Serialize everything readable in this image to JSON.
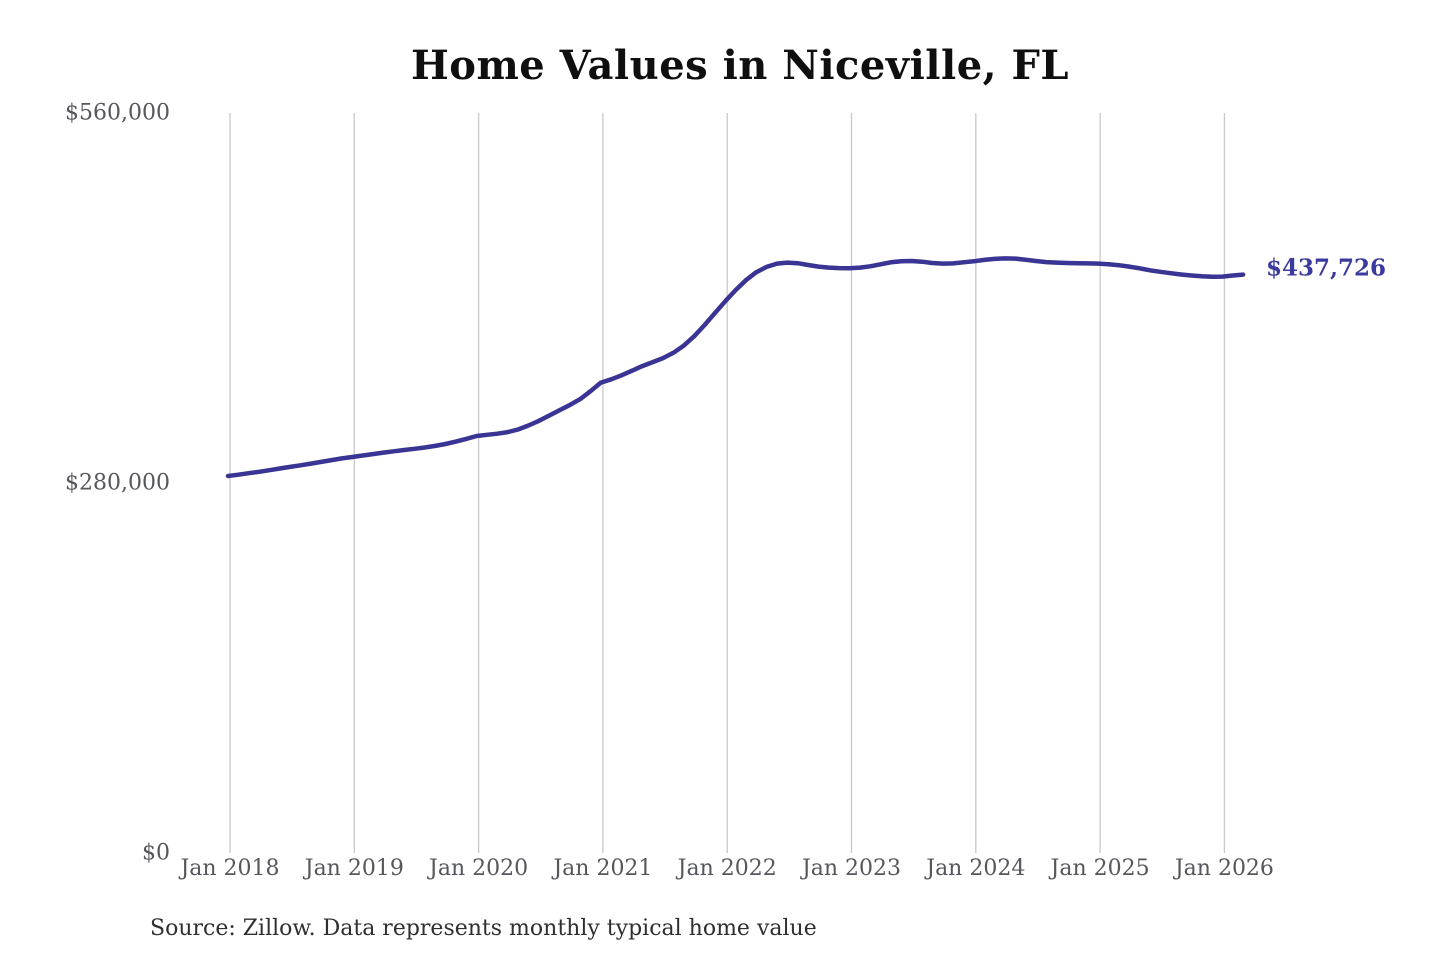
{
  "title": "Home Values in Niceville, FL",
  "latest_value_label": "$437,726",
  "source_note": "Source: Zillow. Data represents monthly typical home value",
  "colors": {
    "line": "#3a3494",
    "latest_label": "#3b3a9e",
    "gridline": "#c9c9cd",
    "title": "#0f0f0f",
    "axis_label": "#55575c",
    "source": "#2f2f2f"
  },
  "chart_data": {
    "type": "line",
    "title": "Home Values in Niceville, FL",
    "xlabel": "",
    "ylabel": "",
    "ylim": [
      0,
      560000
    ],
    "grid": "vertical-only",
    "legend": "none",
    "y_ticks": {
      "values": [
        0,
        280000,
        560000
      ],
      "labels": [
        "$0",
        "$280,000",
        "$560,000"
      ]
    },
    "x_ticks": [
      "Jan 2018",
      "Jan 2019",
      "Jan 2020",
      "Jan 2021",
      "Jan 2022",
      "Jan 2023",
      "Jan 2024",
      "Jan 2025",
      "Jan 2026"
    ],
    "frequency": "monthly",
    "x_start": "Jan 2018",
    "x_end": "Mar 2026",
    "latest_value": 437726,
    "annotations": [
      {
        "text": "$437,726",
        "position": "end-of-line"
      }
    ],
    "series": [
      {
        "name": "Typical home value",
        "values": [
          285300,
          286300,
          287400,
          288500,
          289700,
          291000,
          292200,
          293400,
          294700,
          296000,
          297300,
          298600,
          299700,
          300800,
          301900,
          303000,
          304000,
          305000,
          305900,
          306900,
          308100,
          309500,
          311300,
          313400,
          315600,
          316500,
          317300,
          318500,
          320500,
          323500,
          327000,
          331000,
          335000,
          339000,
          343500,
          349500,
          356000,
          358500,
          361500,
          365000,
          368500,
          371500,
          374500,
          378500,
          384000,
          391000,
          399500,
          408500,
          417500,
          426000,
          433500,
          439500,
          443500,
          446000,
          446800,
          446300,
          445000,
          443800,
          443000,
          442600,
          442500,
          443000,
          444000,
          445500,
          447000,
          447800,
          448000,
          447500,
          446500,
          446000,
          446200,
          447000,
          447800,
          448800,
          449600,
          450000,
          449800,
          449000,
          448000,
          447200,
          446800,
          446500,
          446300,
          446200,
          446000,
          445500,
          444800,
          443800,
          442500,
          441000,
          439800,
          438800,
          437800,
          437000,
          436400,
          436100,
          436200,
          437000,
          437726
        ]
      }
    ]
  }
}
